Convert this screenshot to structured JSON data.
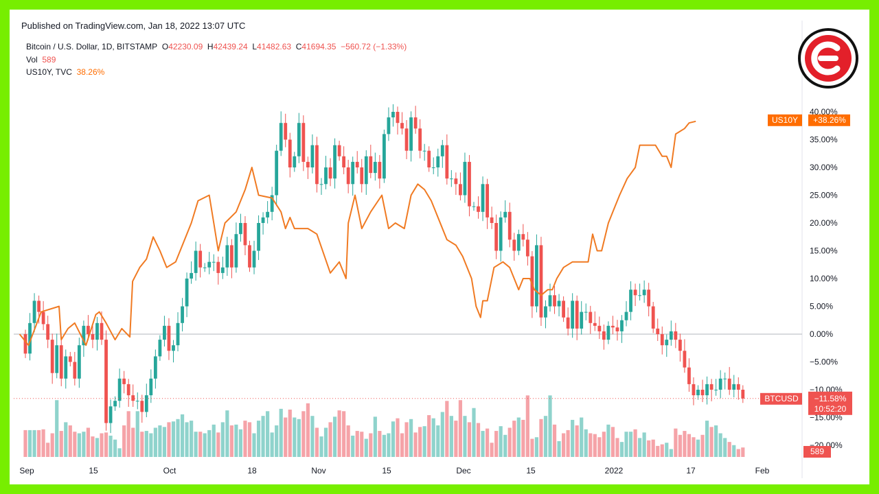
{
  "header": {
    "published": "Published on TradingView.com, Jan 18, 2022 13:07 UTC"
  },
  "legend": {
    "symbol": "Bitcoin / U.S. Dollar, 1D, BITSTAMP",
    "o_label": "O",
    "o_value": "42230.09",
    "h_label": "H",
    "h_value": "42439.24",
    "l_label": "L",
    "l_value": "41482.63",
    "c_label": "C",
    "c_value": "41694.35",
    "change": "−560.72 (−1.33%)",
    "vol_label": "Vol",
    "vol_value": "589",
    "us10y_label": "US10Y, TVC",
    "us10y_value": "38.26%"
  },
  "badges": {
    "us10y_name": "US10Y",
    "us10y_value": "+38.26%",
    "btc_name": "BTCUSD",
    "btc_value": "−11.58%",
    "btc_countdown": "10:52:20",
    "vol_value": "589"
  },
  "colors": {
    "up": "#26a69a",
    "down": "#ef5350",
    "vol_up": "#8fd3cc",
    "vol_down": "#f5a3a8",
    "us10y": "#f07a22",
    "frame": "#77ee00",
    "logo": "#e3202a"
  },
  "logo_icon": "cointelegraph-c-logo",
  "chart_data": {
    "type": "candlestick",
    "yaxis_ticks": [
      "40.00%",
      "35.00%",
      "30.00%",
      "25.00%",
      "20.00%",
      "15.00%",
      "10.00%",
      "5.00%",
      "0.00%",
      "−5.00%",
      "−10.00%",
      "−15.00%",
      "−20.00%"
    ],
    "ylim": [
      -20,
      43
    ],
    "xaxis_ticks": [
      "Sep",
      "15",
      "Oct",
      "18",
      "Nov",
      "15",
      "Dec",
      "15",
      "2022",
      "17",
      "Feb"
    ],
    "btc_percent_close": [
      -3.5,
      2,
      6,
      4,
      1.8,
      -1,
      -7,
      -2,
      -8,
      -4,
      -5,
      -8,
      -2,
      1.5,
      0,
      -1,
      2,
      -1,
      -16,
      -13,
      -12,
      -8,
      -9,
      -11,
      -12,
      -12,
      -14,
      -11,
      -8,
      -4,
      -1,
      1.5,
      -3,
      -2,
      2,
      5,
      10,
      11,
      15,
      12,
      12,
      13,
      13,
      11,
      12,
      16,
      12,
      18,
      20,
      16,
      12,
      15,
      20,
      21,
      22,
      25,
      33,
      38,
      35,
      30,
      32,
      38,
      31,
      30,
      34,
      27,
      27,
      30,
      28,
      34,
      32,
      30,
      27,
      31,
      30,
      27,
      32,
      29,
      31,
      28,
      36,
      39,
      40,
      38,
      37,
      33,
      39,
      37,
      33,
      33,
      30,
      30,
      32,
      34,
      28,
      28,
      27,
      25,
      31,
      23,
      23,
      22,
      27,
      21,
      20,
      15,
      21,
      22,
      17,
      15,
      18,
      17,
      14,
      5,
      16,
      3,
      5,
      7,
      5,
      6,
      3,
      1,
      6,
      1,
      4,
      4,
      2,
      1.5,
      0.5,
      -1,
      1.5,
      1.2,
      0.5,
      2.5,
      4,
      8,
      7,
      7,
      8,
      5,
      1,
      0,
      -2,
      -1,
      0.5,
      -1,
      -3,
      -6,
      -9,
      -11,
      -10,
      -11,
      -9,
      -10,
      -10,
      -8,
      -8,
      -10,
      -9,
      -10,
      -11.58
    ],
    "btc_volume": [
      34,
      34,
      34,
      34,
      35,
      18,
      30,
      72,
      33,
      44,
      40,
      32,
      30,
      32,
      37,
      26,
      24,
      30,
      31,
      27,
      22,
      11,
      40,
      58,
      37,
      58,
      32,
      33,
      30,
      37,
      40,
      38,
      44,
      45,
      48,
      54,
      44,
      46,
      32,
      32,
      30,
      34,
      41,
      31,
      44,
      59,
      40,
      41,
      35,
      46,
      44,
      30,
      46,
      52,
      58,
      31,
      40,
      61,
      50,
      60,
      50,
      48,
      58,
      68,
      52,
      37,
      26,
      37,
      44,
      51,
      59,
      58,
      40,
      27,
      33,
      32,
      23,
      30,
      51,
      33,
      28,
      30,
      45,
      49,
      30,
      44,
      48,
      31,
      38,
      39,
      53,
      49,
      40,
      57,
      71,
      52,
      46,
      72,
      52,
      44,
      62,
      43,
      33,
      36,
      18,
      33,
      39,
      28,
      37,
      46,
      50,
      47,
      78,
      23,
      25,
      48,
      52,
      78,
      41,
      20,
      30,
      34,
      47,
      40,
      50,
      35,
      30,
      29,
      25,
      32,
      41,
      38,
      24,
      19,
      32,
      32,
      35,
      24,
      31,
      21,
      22,
      14,
      16,
      18,
      10,
      36,
      28,
      33,
      29,
      25,
      22,
      28,
      46,
      38,
      40,
      30,
      24,
      19,
      15,
      10,
      12,
      8
    ],
    "us10y_series": [
      [
        -1.3,
        0
      ],
      [
        0.7,
        -2
      ],
      [
        3.5,
        4
      ],
      [
        7.5,
        5
      ],
      [
        8,
        -1
      ],
      [
        9.5,
        1
      ],
      [
        11,
        2
      ],
      [
        13.5,
        -2
      ],
      [
        15.7,
        3.5
      ],
      [
        16.5,
        4
      ],
      [
        18,
        2
      ],
      [
        20,
        -1
      ],
      [
        21.5,
        1
      ],
      [
        23.3,
        -0.5
      ],
      [
        23.9,
        9.5
      ],
      [
        25.5,
        12
      ],
      [
        27,
        13.5
      ],
      [
        28.5,
        17.5
      ],
      [
        30,
        15
      ],
      [
        31.5,
        12
      ],
      [
        33.5,
        13
      ],
      [
        35,
        16
      ],
      [
        37,
        20
      ],
      [
        38.5,
        24
      ],
      [
        41,
        25
      ],
      [
        42,
        20
      ],
      [
        43,
        15
      ],
      [
        44.5,
        20
      ],
      [
        47,
        22
      ],
      [
        49,
        26
      ],
      [
        50.5,
        30
      ],
      [
        52,
        25
      ],
      [
        55,
        24.5
      ],
      [
        57,
        22
      ],
      [
        58,
        19
      ],
      [
        59,
        21
      ],
      [
        60,
        19
      ],
      [
        63,
        19
      ],
      [
        65,
        18
      ],
      [
        68,
        11
      ],
      [
        70,
        13
      ],
      [
        71.5,
        10
      ],
      [
        72,
        20
      ],
      [
        73.5,
        25
      ],
      [
        75,
        19
      ],
      [
        77,
        22
      ],
      [
        79.5,
        25
      ],
      [
        81,
        19
      ],
      [
        82.5,
        20
      ],
      [
        84.5,
        19
      ],
      [
        86,
        25
      ],
      [
        87.5,
        27
      ],
      [
        89,
        26
      ],
      [
        90.5,
        24
      ],
      [
        91.5,
        22
      ],
      [
        94,
        17
      ],
      [
        96,
        16
      ],
      [
        97.5,
        14
      ],
      [
        98.5,
        12
      ],
      [
        99.5,
        10
      ],
      [
        100.5,
        5
      ],
      [
        101.5,
        3
      ],
      [
        102,
        6
      ],
      [
        103,
        6
      ],
      [
        104.5,
        12
      ],
      [
        106.5,
        13
      ],
      [
        108,
        12
      ],
      [
        110,
        8
      ],
      [
        111,
        10
      ],
      [
        112.5,
        10
      ],
      [
        113.5,
        8
      ],
      [
        115,
        7
      ],
      [
        116.5,
        8
      ],
      [
        117.5,
        8
      ],
      [
        118.5,
        10
      ],
      [
        120,
        12
      ],
      [
        122,
        13
      ],
      [
        124,
        13
      ],
      [
        125.5,
        13
      ],
      [
        126.5,
        18
      ],
      [
        127.5,
        15
      ],
      [
        128.5,
        15
      ],
      [
        130,
        20
      ],
      [
        131,
        22
      ],
      [
        132.5,
        25
      ],
      [
        134.2,
        28
      ],
      [
        136,
        30
      ],
      [
        137,
        34
      ],
      [
        139.5,
        34
      ],
      [
        140.5,
        34
      ],
      [
        142,
        32
      ],
      [
        143,
        32
      ],
      [
        144,
        30
      ],
      [
        145,
        36
      ],
      [
        147,
        37
      ],
      [
        148,
        38
      ],
      [
        149.5,
        38.3
      ]
    ]
  }
}
